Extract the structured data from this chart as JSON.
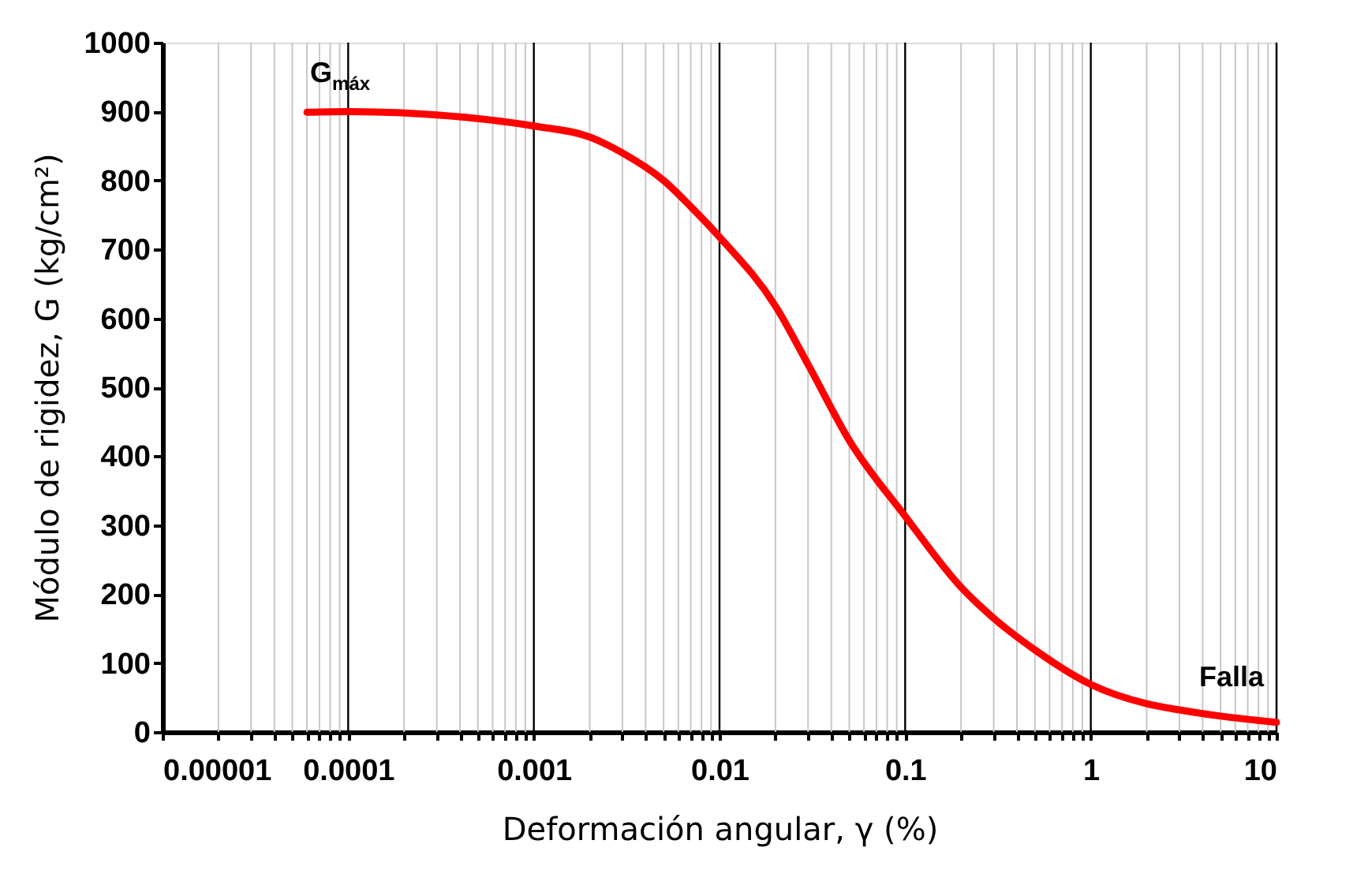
{
  "chart_data": {
    "type": "line",
    "xlabel": "Deformación angular, γ (%)",
    "ylabel": "Módulo de rigidez, G (kg/cm²)",
    "x": [
      6e-05,
      0.0001,
      0.0003,
      0.001,
      0.002,
      0.003,
      0.005,
      0.007,
      0.01,
      0.02,
      0.03,
      0.05,
      0.1,
      0.2,
      0.3,
      0.5,
      1,
      2,
      3,
      5,
      10
    ],
    "series": [
      {
        "color": "#ff0000",
        "values": [
          899,
          900,
          895,
          879,
          863,
          840,
          800,
          762,
          718,
          618,
          533,
          423,
          313,
          210,
          165,
          119,
          69,
          41,
          32,
          23,
          14
        ]
      }
    ],
    "log": "x",
    "xlim": [
      1e-05,
      10
    ],
    "ylim": [
      0,
      1000
    ],
    "xticks": [
      {
        "value": 1e-05,
        "label": "0.00001"
      },
      {
        "value": 2e-05,
        "label": null
      },
      {
        "value": 3e-05,
        "label": null
      },
      {
        "value": 4e-05,
        "label": null
      },
      {
        "value": 5e-05,
        "label": null
      },
      {
        "value": 6e-05,
        "label": null
      },
      {
        "value": 7e-05,
        "label": null
      },
      {
        "value": 8e-05,
        "label": null
      },
      {
        "value": 9e-05,
        "label": null
      },
      {
        "value": 0.0001,
        "label": "0.0001"
      },
      {
        "value": 0.0002,
        "label": null
      },
      {
        "value": 0.0003,
        "label": null
      },
      {
        "value": 0.0004,
        "label": null
      },
      {
        "value": 0.0005,
        "label": null
      },
      {
        "value": 0.0006,
        "label": null
      },
      {
        "value": 0.0007,
        "label": null
      },
      {
        "value": 0.0008,
        "label": null
      },
      {
        "value": 0.0009,
        "label": null
      },
      {
        "value": 0.001,
        "label": "0.001"
      },
      {
        "value": 0.002,
        "label": null
      },
      {
        "value": 0.003,
        "label": null
      },
      {
        "value": 0.004,
        "label": null
      },
      {
        "value": 0.005,
        "label": null
      },
      {
        "value": 0.006,
        "label": null
      },
      {
        "value": 0.007,
        "label": null
      },
      {
        "value": 0.008,
        "label": null
      },
      {
        "value": 0.009,
        "label": null
      },
      {
        "value": 0.01,
        "label": "0.01"
      },
      {
        "value": 0.02,
        "label": null
      },
      {
        "value": 0.03,
        "label": null
      },
      {
        "value": 0.04,
        "label": null
      },
      {
        "value": 0.05,
        "label": null
      },
      {
        "value": 0.06,
        "label": null
      },
      {
        "value": 0.07,
        "label": null
      },
      {
        "value": 0.08,
        "label": null
      },
      {
        "value": 0.09,
        "label": null
      },
      {
        "value": 0.1,
        "label": "0.1"
      },
      {
        "value": 0.2,
        "label": null
      },
      {
        "value": 0.3,
        "label": null
      },
      {
        "value": 0.4,
        "label": null
      },
      {
        "value": 0.5,
        "label": null
      },
      {
        "value": 0.6,
        "label": null
      },
      {
        "value": 0.7,
        "label": null
      },
      {
        "value": 0.8,
        "label": null
      },
      {
        "value": 0.9,
        "label": null
      },
      {
        "value": 1,
        "label": "1"
      },
      {
        "value": 2,
        "label": null
      },
      {
        "value": 3,
        "label": null
      },
      {
        "value": 4,
        "label": null
      },
      {
        "value": 5,
        "label": null
      },
      {
        "value": 6,
        "label": null
      },
      {
        "value": 7,
        "label": null
      },
      {
        "value": 8,
        "label": null
      },
      {
        "value": 9,
        "label": null
      },
      {
        "value": 10,
        "label": "10"
      }
    ],
    "yticks": [
      0,
      100,
      200,
      300,
      400,
      500,
      600,
      700,
      800,
      900,
      1000
    ],
    "grid": "x",
    "line_style": "solid",
    "marker": "none",
    "annotations": [
      "G$_{máx}$",
      "Falla"
    ]
  }
}
